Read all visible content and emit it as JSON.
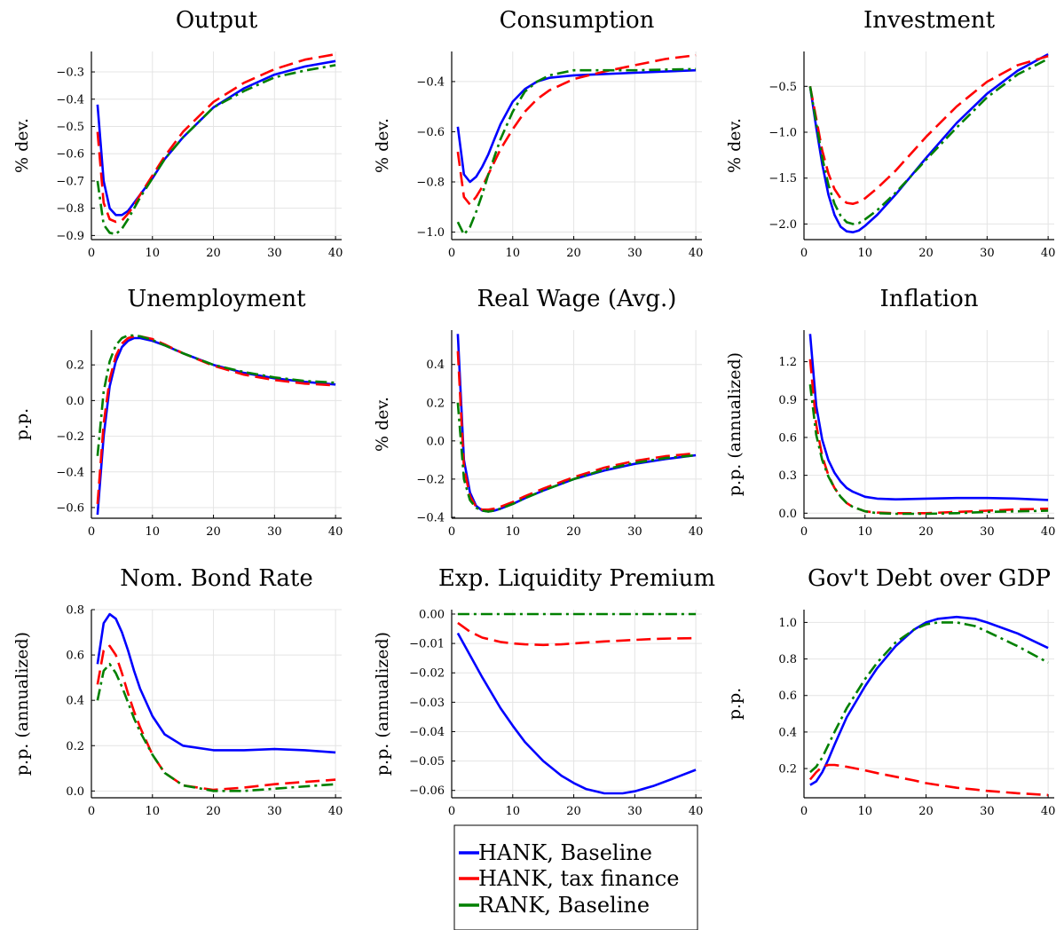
{
  "colors": {
    "hank_baseline": "#0000ff",
    "hank_tax": "#ff0000",
    "rank_baseline": "#008000"
  },
  "legend": {
    "placement": "bottom-center",
    "items": [
      {
        "label": "HANK, Baseline",
        "color": "#0000ff",
        "style": "solid"
      },
      {
        "label": "HANK, tax finance",
        "color": "#ff0000",
        "style": "dashed"
      },
      {
        "label": "RANK, Baseline",
        "color": "#008000",
        "style": "dashdot"
      }
    ]
  },
  "chart_data": [
    {
      "type": "line",
      "title": "Output",
      "ylabel": "% dev.",
      "xlim": [
        0,
        41
      ],
      "ylim": [
        -0.915,
        -0.225
      ],
      "xticks": [
        0,
        10,
        20,
        30,
        40
      ],
      "yticks": [
        -0.9,
        -0.8,
        -0.7,
        -0.6,
        -0.5,
        -0.4,
        -0.3
      ],
      "ytick_labels": [
        "−0.9",
        "−0.8",
        "−0.7",
        "−0.6",
        "−0.5",
        "−0.4",
        "−0.3"
      ],
      "x": [
        1,
        2,
        3,
        4,
        5,
        6,
        7,
        8,
        10,
        12,
        15,
        20,
        25,
        30,
        35,
        40
      ],
      "series": [
        {
          "name": "HANK, Baseline",
          "values": [
            -0.42,
            -0.7,
            -0.8,
            -0.825,
            -0.825,
            -0.81,
            -0.78,
            -0.75,
            -0.69,
            -0.62,
            -0.54,
            -0.43,
            -0.36,
            -0.31,
            -0.28,
            -0.26
          ]
        },
        {
          "name": "HANK, tax finance",
          "values": [
            -0.52,
            -0.78,
            -0.84,
            -0.85,
            -0.845,
            -0.82,
            -0.79,
            -0.75,
            -0.68,
            -0.61,
            -0.52,
            -0.41,
            -0.34,
            -0.29,
            -0.255,
            -0.235
          ]
        },
        {
          "name": "RANK, Baseline",
          "values": [
            -0.7,
            -0.86,
            -0.89,
            -0.895,
            -0.875,
            -0.84,
            -0.8,
            -0.76,
            -0.69,
            -0.62,
            -0.54,
            -0.43,
            -0.37,
            -0.32,
            -0.295,
            -0.275
          ]
        }
      ]
    },
    {
      "type": "line",
      "title": "Consumption",
      "ylabel": "% dev.",
      "xlim": [
        0,
        41
      ],
      "ylim": [
        -1.03,
        -0.28
      ],
      "xticks": [
        0,
        10,
        20,
        30,
        40
      ],
      "yticks": [
        -1.0,
        -0.8,
        -0.6,
        -0.4
      ],
      "ytick_labels": [
        "−1.0",
        "−0.8",
        "−0.6",
        "−0.4"
      ],
      "x": [
        1,
        2,
        3,
        4,
        5,
        6,
        7,
        8,
        10,
        12,
        14,
        16,
        20,
        25,
        30,
        35,
        40
      ],
      "series": [
        {
          "name": "HANK, Baseline",
          "values": [
            -0.58,
            -0.77,
            -0.8,
            -0.78,
            -0.74,
            -0.69,
            -0.63,
            -0.57,
            -0.48,
            -0.43,
            -0.4,
            -0.385,
            -0.375,
            -0.37,
            -0.365,
            -0.36,
            -0.355
          ]
        },
        {
          "name": "HANK, tax finance",
          "values": [
            -0.68,
            -0.86,
            -0.89,
            -0.86,
            -0.82,
            -0.77,
            -0.72,
            -0.67,
            -0.59,
            -0.52,
            -0.47,
            -0.435,
            -0.39,
            -0.36,
            -0.335,
            -0.31,
            -0.295
          ]
        },
        {
          "name": "RANK, Baseline",
          "values": [
            -0.96,
            -1.01,
            -0.98,
            -0.92,
            -0.85,
            -0.77,
            -0.7,
            -0.63,
            -0.52,
            -0.44,
            -0.4,
            -0.375,
            -0.355,
            -0.355,
            -0.355,
            -0.352,
            -0.35
          ]
        }
      ]
    },
    {
      "type": "line",
      "title": "Investment",
      "ylabel": "% dev.",
      "xlim": [
        0,
        41
      ],
      "ylim": [
        -2.17,
        -0.12
      ],
      "xticks": [
        0,
        10,
        20,
        30,
        40
      ],
      "yticks": [
        -2.0,
        -1.5,
        -1.0,
        -0.5
      ],
      "ytick_labels": [
        "−2.0",
        "−1.5",
        "−1.0",
        "−0.5"
      ],
      "x": [
        1,
        2,
        3,
        4,
        5,
        6,
        7,
        8,
        9,
        10,
        12,
        15,
        20,
        25,
        30,
        35,
        40
      ],
      "series": [
        {
          "name": "HANK, Baseline",
          "values": [
            -0.5,
            -0.95,
            -1.35,
            -1.68,
            -1.9,
            -2.03,
            -2.08,
            -2.09,
            -2.07,
            -2.02,
            -1.9,
            -1.68,
            -1.28,
            -0.9,
            -0.58,
            -0.33,
            -0.15
          ]
        },
        {
          "name": "HANK, tax finance",
          "values": [
            -0.5,
            -0.85,
            -1.2,
            -1.45,
            -1.62,
            -1.72,
            -1.77,
            -1.78,
            -1.76,
            -1.72,
            -1.61,
            -1.42,
            -1.05,
            -0.72,
            -0.45,
            -0.27,
            -0.17
          ]
        },
        {
          "name": "RANK, Baseline",
          "values": [
            -0.5,
            -0.9,
            -1.28,
            -1.57,
            -1.78,
            -1.91,
            -1.98,
            -2.0,
            -1.99,
            -1.95,
            -1.85,
            -1.66,
            -1.3,
            -0.95,
            -0.62,
            -0.37,
            -0.2
          ]
        }
      ]
    },
    {
      "type": "line",
      "title": "Unemployment",
      "ylabel": "p.p.",
      "xlim": [
        0,
        41
      ],
      "ylim": [
        -0.66,
        0.395
      ],
      "xticks": [
        0,
        10,
        20,
        30,
        40
      ],
      "yticks": [
        -0.6,
        -0.4,
        -0.2,
        0.0,
        0.2
      ],
      "ytick_labels": [
        "−0.6",
        "−0.4",
        "−0.2",
        "0.0",
        "0.2"
      ],
      "x": [
        1,
        2,
        3,
        4,
        5,
        6,
        7,
        8,
        10,
        12,
        15,
        20,
        25,
        30,
        35,
        40
      ],
      "series": [
        {
          "name": "HANK, Baseline",
          "values": [
            -0.64,
            -0.2,
            0.08,
            0.22,
            0.3,
            0.335,
            0.35,
            0.35,
            0.335,
            0.31,
            0.265,
            0.2,
            0.155,
            0.125,
            0.105,
            0.09
          ]
        },
        {
          "name": "HANK, tax finance",
          "values": [
            -0.58,
            -0.13,
            0.12,
            0.25,
            0.32,
            0.35,
            0.36,
            0.36,
            0.345,
            0.315,
            0.265,
            0.195,
            0.145,
            0.115,
            0.095,
            0.085
          ]
        },
        {
          "name": "RANK, Baseline",
          "values": [
            -0.31,
            0.05,
            0.22,
            0.31,
            0.35,
            0.365,
            0.365,
            0.36,
            0.34,
            0.31,
            0.265,
            0.2,
            0.16,
            0.13,
            0.11,
            0.1
          ]
        }
      ]
    },
    {
      "type": "line",
      "title": "Real Wage (Avg.)",
      "ylabel": "% dev.",
      "xlim": [
        0,
        41
      ],
      "ylim": [
        -0.405,
        0.58
      ],
      "xticks": [
        0,
        10,
        20,
        30,
        40
      ],
      "yticks": [
        -0.4,
        -0.2,
        0.0,
        0.2,
        0.4
      ],
      "ytick_labels": [
        "−0.4",
        "−0.2",
        "0.0",
        "0.2",
        "0.4"
      ],
      "x": [
        1,
        2,
        3,
        4,
        5,
        6,
        7,
        8,
        10,
        12,
        15,
        20,
        25,
        30,
        35,
        40
      ],
      "series": [
        {
          "name": "HANK, Baseline",
          "values": [
            0.56,
            -0.1,
            -0.27,
            -0.34,
            -0.365,
            -0.37,
            -0.365,
            -0.355,
            -0.33,
            -0.3,
            -0.26,
            -0.2,
            -0.155,
            -0.12,
            -0.095,
            -0.075
          ]
        },
        {
          "name": "HANK, tax finance",
          "values": [
            0.47,
            -0.14,
            -0.29,
            -0.345,
            -0.36,
            -0.36,
            -0.355,
            -0.345,
            -0.32,
            -0.29,
            -0.25,
            -0.19,
            -0.14,
            -0.105,
            -0.08,
            -0.065
          ]
        },
        {
          "name": "RANK, Baseline",
          "values": [
            0.2,
            -0.2,
            -0.31,
            -0.35,
            -0.365,
            -0.37,
            -0.365,
            -0.355,
            -0.33,
            -0.3,
            -0.26,
            -0.2,
            -0.15,
            -0.115,
            -0.09,
            -0.075
          ]
        }
      ]
    },
    {
      "type": "line",
      "title": "Inflation",
      "ylabel": "p.p. (annualized)",
      "xlim": [
        0,
        41
      ],
      "ylim": [
        -0.04,
        1.45
      ],
      "xticks": [
        0,
        10,
        20,
        30,
        40
      ],
      "yticks": [
        0.0,
        0.3,
        0.6,
        0.9,
        1.2
      ],
      "ytick_labels": [
        "0.0",
        "0.3",
        "0.6",
        "0.9",
        "1.2"
      ],
      "x": [
        1,
        2,
        3,
        4,
        5,
        6,
        7,
        8,
        10,
        12,
        15,
        20,
        25,
        30,
        35,
        40
      ],
      "series": [
        {
          "name": "HANK, Baseline",
          "values": [
            1.42,
            0.85,
            0.58,
            0.42,
            0.32,
            0.25,
            0.2,
            0.17,
            0.13,
            0.115,
            0.11,
            0.115,
            0.12,
            0.12,
            0.115,
            0.105
          ]
        },
        {
          "name": "HANK, tax finance",
          "values": [
            1.22,
            0.7,
            0.45,
            0.3,
            0.2,
            0.13,
            0.08,
            0.05,
            0.015,
            0.005,
            0.0,
            0.0,
            0.01,
            0.02,
            0.03,
            0.035
          ]
        },
        {
          "name": "RANK, Baseline",
          "values": [
            1.02,
            0.62,
            0.42,
            0.29,
            0.2,
            0.13,
            0.08,
            0.05,
            0.015,
            0.0,
            -0.005,
            -0.005,
            0.0,
            0.01,
            0.015,
            0.02
          ]
        }
      ]
    },
    {
      "type": "line",
      "title": "Nom. Bond Rate",
      "ylabel": "p.p. (annualized)",
      "xlim": [
        0,
        41
      ],
      "ylim": [
        -0.03,
        0.8
      ],
      "xticks": [
        0,
        10,
        20,
        30,
        40
      ],
      "yticks": [
        0.0,
        0.2,
        0.4,
        0.6,
        0.8
      ],
      "ytick_labels": [
        "0.0",
        "0.2",
        "0.4",
        "0.6",
        "0.8"
      ],
      "x": [
        1,
        2,
        3,
        4,
        5,
        6,
        7,
        8,
        10,
        12,
        15,
        20,
        25,
        30,
        35,
        40
      ],
      "series": [
        {
          "name": "HANK, Baseline",
          "values": [
            0.56,
            0.74,
            0.78,
            0.76,
            0.7,
            0.62,
            0.53,
            0.45,
            0.33,
            0.25,
            0.2,
            0.18,
            0.18,
            0.185,
            0.18,
            0.17
          ]
        },
        {
          "name": "HANK, tax finance",
          "values": [
            0.47,
            0.62,
            0.64,
            0.6,
            0.52,
            0.43,
            0.35,
            0.28,
            0.16,
            0.08,
            0.025,
            0.005,
            0.015,
            0.03,
            0.04,
            0.05
          ]
        },
        {
          "name": "RANK, Baseline",
          "values": [
            0.4,
            0.53,
            0.56,
            0.52,
            0.46,
            0.39,
            0.32,
            0.26,
            0.16,
            0.08,
            0.025,
            0.0,
            0.0,
            0.01,
            0.02,
            0.03
          ]
        }
      ]
    },
    {
      "type": "line",
      "title": "Exp. Liquidity Premium",
      "ylabel": "p.p. (annualized)",
      "xlim": [
        0,
        41
      ],
      "ylim": [
        -0.0625,
        0.0015
      ],
      "xticks": [
        0,
        10,
        20,
        30,
        40
      ],
      "yticks": [
        -0.06,
        -0.05,
        -0.04,
        -0.03,
        -0.02,
        -0.01,
        0.0
      ],
      "ytick_labels": [
        "−0.06",
        "−0.05",
        "−0.04",
        "−0.03",
        "−0.02",
        "−0.01",
        "0.00"
      ],
      "x": [
        1,
        3,
        5,
        8,
        10,
        12,
        15,
        18,
        20,
        22,
        25,
        28,
        30,
        33,
        36,
        40
      ],
      "series": [
        {
          "name": "HANK, Baseline",
          "values": [
            -0.0065,
            -0.014,
            -0.0215,
            -0.032,
            -0.038,
            -0.0435,
            -0.05,
            -0.055,
            -0.0575,
            -0.0595,
            -0.061,
            -0.061,
            -0.0603,
            -0.0585,
            -0.0562,
            -0.053
          ]
        },
        {
          "name": "HANK, tax finance",
          "values": [
            -0.003,
            -0.006,
            -0.008,
            -0.0095,
            -0.01,
            -0.0103,
            -0.0105,
            -0.0103,
            -0.01,
            -0.0097,
            -0.0093,
            -0.009,
            -0.0088,
            -0.0085,
            -0.0083,
            -0.0082
          ]
        },
        {
          "name": "RANK, Baseline",
          "values": [
            0.0,
            0.0,
            0.0,
            0.0,
            0.0,
            0.0,
            0.0,
            0.0,
            0.0,
            0.0,
            0.0,
            0.0,
            0.0,
            0.0,
            0.0,
            0.0
          ]
        }
      ]
    },
    {
      "type": "line",
      "title": "Gov't Debt over GDP",
      "ylabel": "p.p.",
      "xlim": [
        0,
        41
      ],
      "ylim": [
        0.04,
        1.07
      ],
      "xticks": [
        0,
        10,
        20,
        30,
        40
      ],
      "yticks": [
        0.2,
        0.4,
        0.6,
        0.8,
        1.0
      ],
      "ytick_labels": [
        "0.2",
        "0.4",
        "0.6",
        "0.8",
        "1.0"
      ],
      "x": [
        1,
        2,
        3,
        4,
        5,
        7,
        10,
        12,
        15,
        18,
        20,
        22,
        25,
        28,
        30,
        35,
        40
      ],
      "series": [
        {
          "name": "HANK, Baseline",
          "values": [
            0.11,
            0.13,
            0.18,
            0.25,
            0.33,
            0.48,
            0.65,
            0.75,
            0.87,
            0.96,
            1.0,
            1.02,
            1.03,
            1.02,
            1.0,
            0.94,
            0.86
          ]
        },
        {
          "name": "HANK, tax finance",
          "values": [
            0.14,
            0.18,
            0.21,
            0.22,
            0.22,
            0.21,
            0.19,
            0.175,
            0.155,
            0.135,
            0.12,
            0.11,
            0.095,
            0.085,
            0.078,
            0.065,
            0.055
          ]
        },
        {
          "name": "RANK, Baseline",
          "values": [
            0.18,
            0.21,
            0.26,
            0.33,
            0.4,
            0.53,
            0.69,
            0.78,
            0.89,
            0.96,
            0.99,
            1.0,
            1.0,
            0.98,
            0.95,
            0.87,
            0.78
          ]
        }
      ]
    }
  ]
}
